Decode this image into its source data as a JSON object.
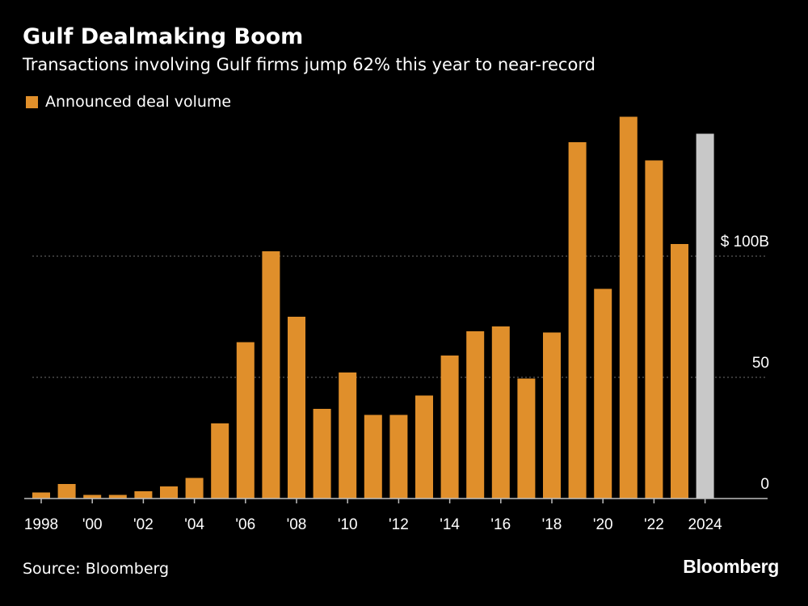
{
  "brand": "Bloomberg",
  "source": "Source: Bloomberg",
  "colors": {
    "background": "#000000",
    "bar": "#e08f2b",
    "bar_highlight": "#c8c8c8",
    "gridline": "#6e6e6e",
    "text": "#ffffff"
  },
  "chart_data": {
    "type": "bar",
    "title": "Gulf Dealmaking Boom",
    "subtitle": "Transactions involving Gulf firms jump 62% this year to near-record",
    "xlabel": "",
    "ylabel": "",
    "ylim": [
      0,
      160
    ],
    "grid": true,
    "legend_position": "top-left",
    "categories": [
      "1998",
      "1999",
      "2000",
      "2001",
      "2002",
      "2003",
      "2004",
      "2005",
      "2006",
      "2007",
      "2008",
      "2009",
      "2010",
      "2011",
      "2012",
      "2013",
      "2014",
      "2015",
      "2016",
      "2017",
      "2018",
      "2019",
      "2020",
      "2021",
      "2022",
      "2023",
      "2024"
    ],
    "series": [
      {
        "name": "Announced deal volume",
        "values": [
          2.5,
          6,
          1.5,
          1.5,
          3,
          5,
          8.5,
          31,
          64.5,
          102,
          75,
          37,
          52,
          34.5,
          34.5,
          42.5,
          59,
          69,
          71,
          49.5,
          68.5,
          147,
          86.5,
          157.5,
          139.5,
          105,
          150.5
        ]
      }
    ],
    "highlight_index": 26,
    "x_tick_labels": [
      "1998",
      "'00",
      "'02",
      "'04",
      "'06",
      "'08",
      "'10",
      "'12",
      "'14",
      "'16",
      "'18",
      "'20",
      "'22",
      "2024"
    ],
    "x_tick_indices": [
      0,
      2,
      4,
      6,
      8,
      10,
      12,
      14,
      16,
      18,
      20,
      22,
      24,
      26
    ],
    "y_ticks": [
      {
        "value": 0,
        "label": "0"
      },
      {
        "value": 50,
        "label": "50"
      },
      {
        "value": 100,
        "label": "$ 100B"
      }
    ]
  }
}
